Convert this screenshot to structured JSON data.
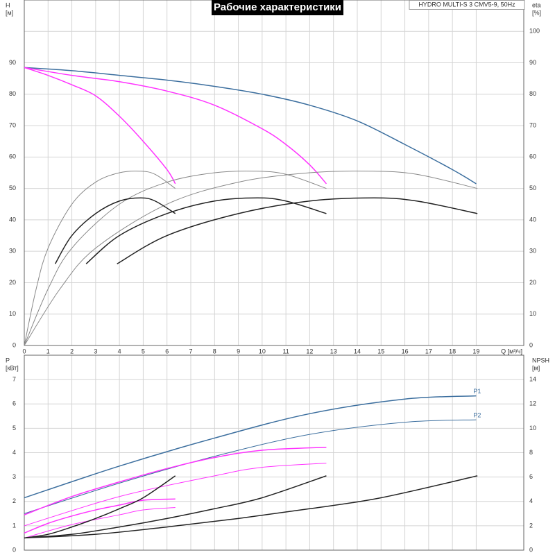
{
  "chart_data": [
    {
      "type": "line",
      "title": "Рабочие характеристики",
      "subtitle": "HYDRO MULTI-S 3 CMV5-9, 50Hz",
      "ylabel": [
        "H",
        "[м]"
      ],
      "y2label": [
        "eta",
        "[%]"
      ],
      "xlabel": "Q [м³/ч]",
      "xlim": [
        0,
        21
      ],
      "xticks": [
        0,
        1,
        2,
        3,
        4,
        5,
        6,
        7,
        8,
        9,
        10,
        11,
        12,
        13,
        14,
        15,
        16,
        17,
        18,
        19
      ],
      "ylim": [
        0,
        110
      ],
      "yticks": [
        0,
        10,
        20,
        30,
        40,
        50,
        60,
        70,
        80,
        90
      ],
      "y2lim": [
        0,
        110
      ],
      "y2ticks": [
        0,
        10,
        20,
        30,
        40,
        50,
        60,
        70,
        80,
        90,
        100
      ],
      "grid": true,
      "series": [
        {
          "color": "#3b6e9e",
          "line_width": 1.5,
          "x": [
            0,
            2,
            4,
            6,
            8,
            10,
            12,
            14,
            16,
            18,
            19
          ],
          "values": [
            88.5,
            87.5,
            86,
            84.5,
            82.5,
            80,
            76.5,
            71.5,
            64,
            56,
            51.5
          ]
        },
        {
          "color": "#ff33ff",
          "line_width": 1.5,
          "x": [
            0,
            2,
            4,
            6,
            8,
            10,
            11,
            12,
            12.7
          ],
          "values": [
            88.5,
            86,
            84,
            81,
            76.5,
            69,
            64,
            57.5,
            51.5
          ]
        },
        {
          "color": "#ff33ff",
          "line_width": 1.5,
          "x": [
            0,
            1,
            2,
            3,
            4,
            5,
            6,
            6.35
          ],
          "values": [
            88.5,
            86,
            83,
            79.5,
            73,
            65,
            56,
            51.5
          ]
        },
        {
          "color": "#888888",
          "line_width": 1,
          "axis": "y2",
          "x": [
            0,
            0.5,
            1,
            2,
            3,
            4,
            4.85,
            5.5,
            6.35
          ],
          "values": [
            0,
            18,
            31,
            45,
            52,
            55,
            55.5,
            54.5,
            50
          ]
        },
        {
          "color": "#888888",
          "line_width": 1,
          "axis": "y2",
          "x": [
            0,
            1,
            2,
            4,
            6,
            8,
            9.7,
            11,
            12.7
          ],
          "values": [
            0,
            18,
            31,
            45,
            52,
            55,
            55.5,
            54.5,
            50
          ]
        },
        {
          "color": "#888888",
          "line_width": 1,
          "axis": "y2",
          "x": [
            0,
            1.5,
            3,
            6,
            9,
            12,
            14.55,
            16.5,
            19.05
          ],
          "values": [
            0,
            18,
            31,
            45,
            52,
            55,
            55.5,
            54.5,
            50
          ]
        },
        {
          "color": "#222222",
          "line_width": 1.5,
          "x": [
            1.3,
            2,
            3,
            4,
            4.9,
            5.5,
            6.35
          ],
          "values": [
            26,
            35,
            42,
            46,
            47,
            46,
            42
          ]
        },
        {
          "color": "#222222",
          "line_width": 1.5,
          "x": [
            2.6,
            4,
            6,
            8,
            9.8,
            11,
            12.7
          ],
          "values": [
            26,
            35,
            42,
            46,
            47,
            46,
            42
          ]
        },
        {
          "color": "#222222",
          "line_width": 1.5,
          "x": [
            3.9,
            6,
            9,
            12,
            14.7,
            16.5,
            19.05
          ],
          "values": [
            26,
            35,
            42,
            46,
            47,
            46,
            42
          ]
        }
      ]
    },
    {
      "type": "line",
      "ylabel": [
        "P",
        "[кВт]"
      ],
      "y2label": [
        "NPSH",
        "[м]"
      ],
      "xlim": [
        0,
        21
      ],
      "ylim": [
        0,
        8
      ],
      "yticks": [
        0,
        1,
        2,
        3,
        4,
        5,
        6,
        7
      ],
      "y2lim": [
        0,
        16
      ],
      "y2ticks": [
        0,
        2,
        4,
        6,
        8,
        10,
        12,
        14
      ],
      "grid": true,
      "series": [
        {
          "name": "P1",
          "color": "#3b6e9e",
          "line_width": 1.5,
          "x": [
            0,
            4,
            8,
            12,
            16,
            19
          ],
          "values": [
            2.15,
            3.45,
            4.6,
            5.6,
            6.2,
            6.33
          ]
        },
        {
          "name": "P2",
          "color": "#3b6e9e",
          "line_width": 1,
          "x": [
            0,
            4,
            8,
            12,
            16,
            19
          ],
          "values": [
            1.5,
            2.75,
            3.85,
            4.75,
            5.25,
            5.35
          ]
        },
        {
          "color": "#ff33ff",
          "line_width": 1.5,
          "x": [
            0,
            2,
            4,
            6,
            8,
            10,
            12.7
          ],
          "values": [
            1.45,
            2.2,
            2.8,
            3.35,
            3.8,
            4.1,
            4.22
          ]
        },
        {
          "color": "#ff33ff",
          "line_width": 1,
          "x": [
            0,
            4,
            8,
            10,
            12.7
          ],
          "values": [
            1.0,
            2.2,
            3.05,
            3.4,
            3.57
          ]
        },
        {
          "color": "#ff33ff",
          "line_width": 1.5,
          "x": [
            0,
            1,
            2,
            3,
            4,
            5,
            6.35
          ],
          "values": [
            0.7,
            1.1,
            1.4,
            1.65,
            1.85,
            2.05,
            2.1
          ]
        },
        {
          "color": "#ff33ff",
          "line_width": 1,
          "x": [
            0,
            2,
            4,
            5,
            6.35
          ],
          "values": [
            0.5,
            1.05,
            1.45,
            1.65,
            1.75
          ]
        },
        {
          "color": "#222222",
          "line_width": 1.5,
          "axis": "y2",
          "x": [
            0,
            1,
            2,
            3,
            4,
            5,
            6.35
          ],
          "values": [
            1,
            1.3,
            1.9,
            2.6,
            3.4,
            4.3,
            6.1
          ]
        },
        {
          "color": "#222222",
          "line_width": 1.5,
          "axis": "y2",
          "x": [
            0,
            2,
            4,
            6,
            8,
            10,
            12.7
          ],
          "values": [
            1,
            1.3,
            1.9,
            2.6,
            3.4,
            4.3,
            6.1
          ]
        },
        {
          "color": "#222222",
          "line_width": 1.5,
          "axis": "y2",
          "x": [
            0,
            3,
            6,
            9,
            12,
            15,
            19.05
          ],
          "values": [
            1,
            1.3,
            1.9,
            2.6,
            3.4,
            4.3,
            6.1
          ]
        }
      ]
    }
  ]
}
